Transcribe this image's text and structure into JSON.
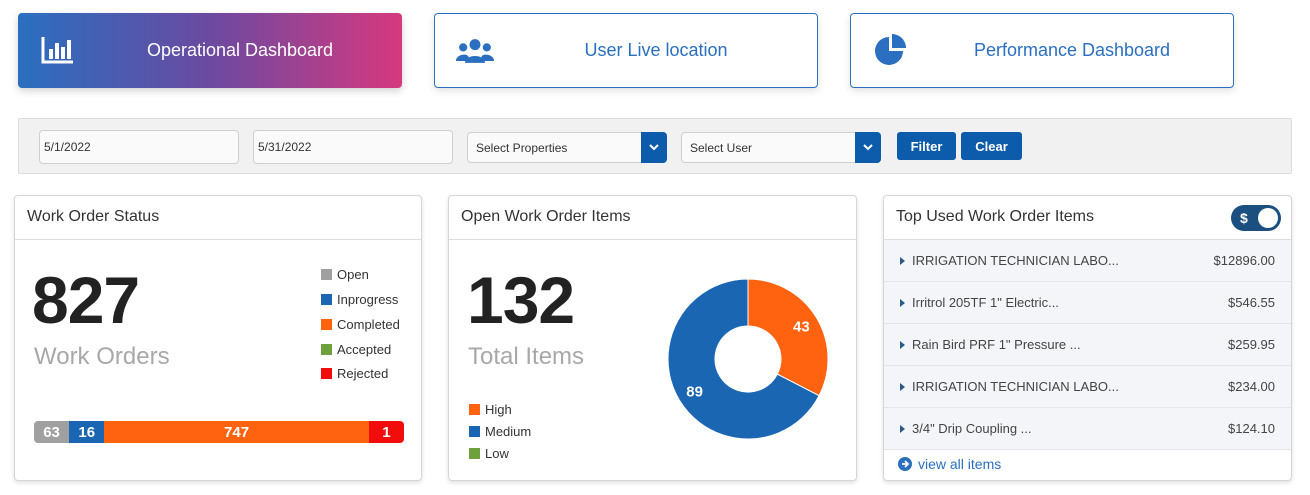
{
  "nav": [
    {
      "label": "Operational Dashboard",
      "icon": "bar-chart-icon"
    },
    {
      "label": "User Live location",
      "icon": "users-icon"
    },
    {
      "label": "Performance Dashboard",
      "icon": "pie-chart-icon"
    }
  ],
  "filters": {
    "start_date": "5/1/2022",
    "end_date": "5/31/2022",
    "properties_label": "Select Properties",
    "user_label": "Select User",
    "filter_button": "Filter",
    "clear_button": "Clear"
  },
  "work_order_status": {
    "title": "Work Order Status",
    "count": "827",
    "caption": "Work Orders",
    "legend": [
      {
        "label": "Open",
        "color": "#a0a0a0"
      },
      {
        "label": "Inprogress",
        "color": "#1a66b3"
      },
      {
        "label": "Completed",
        "color": "#ff6310"
      },
      {
        "label": "Accepted",
        "color": "#6ea03c"
      },
      {
        "label": "Rejected",
        "color": "#f20d0d"
      }
    ],
    "bar": [
      {
        "label": "63",
        "value": 63,
        "color": "#a0a0a0"
      },
      {
        "label": "16",
        "value": 16,
        "color": "#1a66b3"
      },
      {
        "label": "747",
        "value": 747,
        "color": "#ff6310"
      },
      {
        "label": "1",
        "value": 1,
        "color": "#f20d0d"
      }
    ]
  },
  "open_items": {
    "title": "Open Work Order Items",
    "count": "132",
    "caption": "Total Items",
    "legend": [
      {
        "label": "High",
        "color": "#ff6310"
      },
      {
        "label": "Medium",
        "color": "#1a66b3"
      },
      {
        "label": "Low",
        "color": "#6ea03c"
      }
    ]
  },
  "chart_data": {
    "type": "pie",
    "donut": true,
    "categories": [
      "High",
      "Medium",
      "Low"
    ],
    "values": [
      43,
      89,
      0
    ],
    "colors": [
      "#ff6310",
      "#1a66b3",
      "#6ea03c"
    ],
    "data_labels": [
      "43",
      "89",
      ""
    ]
  },
  "top_used": {
    "title": "Top Used Work Order Items",
    "toggle_label": "$",
    "items": [
      {
        "name": "IRRIGATION TECHNICIAN LABO...",
        "price": "$12896.00"
      },
      {
        "name": "Irritrol 205TF 1\" Electric...",
        "price": "$546.55"
      },
      {
        "name": "Rain Bird PRF 1\" Pressure ...",
        "price": "$259.95"
      },
      {
        "name": "IRRIGATION TECHNICIAN LABO...",
        "price": "$234.00"
      },
      {
        "name": "3/4\" Drip Coupling ...",
        "price": "$124.10"
      }
    ],
    "view_all": "view all items"
  }
}
